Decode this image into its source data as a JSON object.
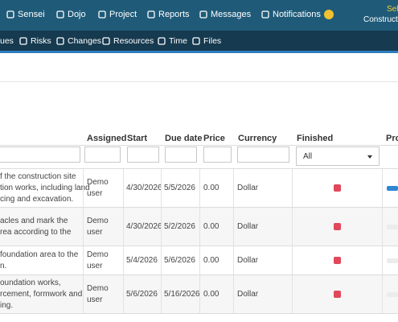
{
  "nav": {
    "items": [
      "Sensei",
      "Dojo",
      "Project",
      "Reports",
      "Messages",
      "Notifications"
    ],
    "user_select": "Sele",
    "company": "Constructio"
  },
  "subnav": {
    "items": [
      "ues",
      "Risks",
      "Changes",
      "Resources",
      "Time",
      "Files"
    ]
  },
  "table": {
    "columns": [
      "Assigned",
      "Start",
      "Due date",
      "Price",
      "Currency",
      "Finished",
      "Pro"
    ],
    "filter_select": "All",
    "rows": [
      {
        "description": "f the construction site\ntion works, including land\ncing and excavation.",
        "assigned": "Demo\nuser",
        "start": "4/30/2026",
        "due": "5/5/2026",
        "price": "0.00",
        "currency": "Dollar"
      },
      {
        "description": "acles and mark the\nrea according to the",
        "assigned": "Demo\nuser",
        "start": "4/30/2026",
        "due": "5/2/2026",
        "price": "0.00",
        "currency": "Dollar"
      },
      {
        "description": "foundation area to the\nn.",
        "assigned": "Demo\nuser",
        "start": "5/4/2026",
        "due": "5/6/2026",
        "price": "0.00",
        "currency": "Dollar"
      },
      {
        "description": "oundation works,\nrcement, formwork and\ning.",
        "assigned": "Demo\nuser",
        "start": "5/6/2026",
        "due": "5/16/2026",
        "price": "0.00",
        "currency": "Dollar"
      }
    ]
  }
}
